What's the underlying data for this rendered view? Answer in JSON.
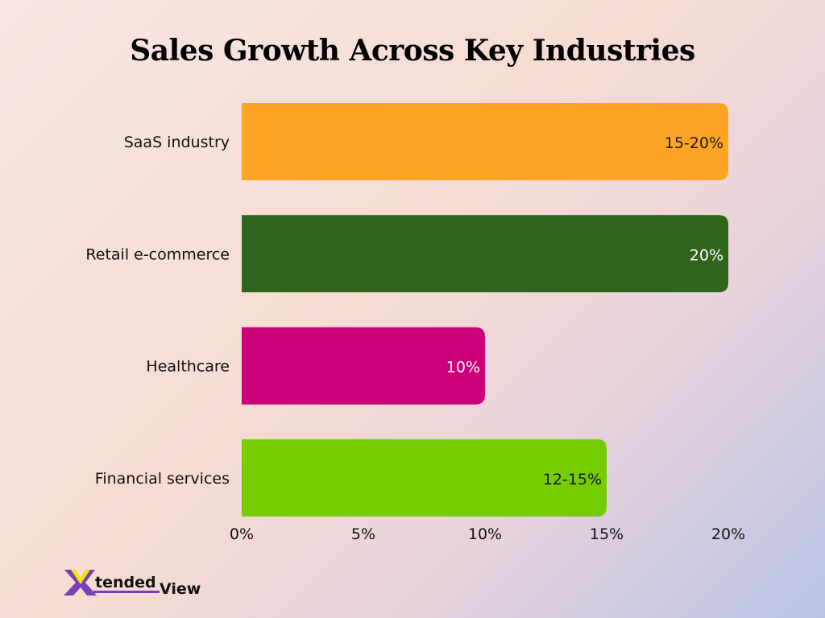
{
  "chart_data": {
    "type": "bar",
    "orientation": "horizontal",
    "title": "Sales Growth Across Key Industries",
    "categories": [
      "SaaS industry",
      "Retail e-commerce",
      "Healthcare",
      "Financial services"
    ],
    "values": [
      20,
      20,
      10,
      15
    ],
    "data_labels": [
      "15-20%",
      "20%",
      "10%",
      "12-15%"
    ],
    "colors": [
      "#fda425",
      "#2e641c",
      "#cc0077",
      "#75cc00"
    ],
    "label_colors": [
      "#1a1a1a",
      "#ffffff",
      "#ffffff",
      "#1a1a1a"
    ],
    "xlim": [
      0,
      20
    ],
    "xticks": [
      "0%",
      "5%",
      "10%",
      "15%",
      "20%"
    ],
    "xtick_values": [
      0,
      5,
      10,
      15,
      20
    ],
    "grid": false,
    "xlabel": "",
    "ylabel": ""
  },
  "logo": {
    "text": "XtendedView"
  }
}
